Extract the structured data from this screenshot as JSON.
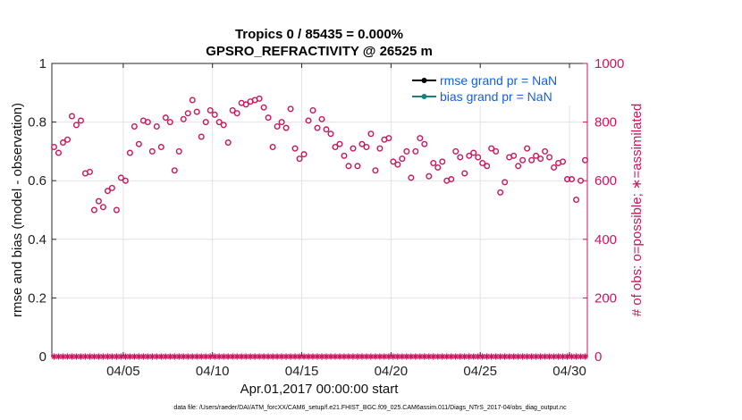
{
  "chart_data": {
    "type": "scatter",
    "title_line1": "Tropics 0 / 85435 = 0.000%",
    "title_line2": "GPSRO_REFRACTIVITY @ 26525 m",
    "xlabel": "Apr.01,2017 00:00:00 start",
    "ylabel_left": "rmse and bias (model - observation)",
    "ylabel_right": "# of obs: o=possible; ∗=assimilated",
    "x_tick_labels": [
      "04/05",
      "04/10",
      "04/15",
      "04/20",
      "04/25",
      "04/30"
    ],
    "x_tick_values": [
      5,
      10,
      15,
      20,
      25,
      30
    ],
    "xlim": [
      1,
      31
    ],
    "ylim_left": [
      0,
      1
    ],
    "ylim_right": [
      0,
      1000
    ],
    "y_left_ticks": [
      "0",
      "0.2",
      "0.4",
      "0.6",
      "0.8",
      "1"
    ],
    "y_right_ticks": [
      "0",
      "200",
      "400",
      "600",
      "800",
      "1000"
    ],
    "legend": [
      "rmse grand pr = NaN",
      "bias grand pr = NaN"
    ],
    "footnote": "data file: /Users/raeder/DAI/ATM_forcXX/CAM6_setup/f.e21.FHIST_BGC.f09_025.CAM6assim.011/Diags_NTrS_2017-04/obs_diag_output.nc",
    "colors": {
      "possible": "#c8175d",
      "rmse": "#000000",
      "bias": "#1a8080",
      "legend_text": "#1560d8"
    },
    "series": [
      {
        "name": "possible",
        "axis": "right",
        "x": [
          1.125,
          1.375,
          1.625,
          1.875,
          2.125,
          2.375,
          2.625,
          2.875,
          3.125,
          3.375,
          3.625,
          3.875,
          4.125,
          4.375,
          4.625,
          4.875,
          5.125,
          5.375,
          5.625,
          5.875,
          6.125,
          6.375,
          6.625,
          6.875,
          7.125,
          7.375,
          7.625,
          7.875,
          8.125,
          8.375,
          8.625,
          8.875,
          9.125,
          9.375,
          9.625,
          9.875,
          10.125,
          10.375,
          10.625,
          10.875,
          11.125,
          11.375,
          11.625,
          11.875,
          12.125,
          12.375,
          12.625,
          12.875,
          13.125,
          13.375,
          13.625,
          13.875,
          14.125,
          14.375,
          14.625,
          14.875,
          15.125,
          15.375,
          15.625,
          15.875,
          16.125,
          16.375,
          16.625,
          16.875,
          17.125,
          17.375,
          17.625,
          17.875,
          18.125,
          18.375,
          18.625,
          18.875,
          19.125,
          19.375,
          19.625,
          19.875,
          20.125,
          20.375,
          20.625,
          20.875,
          21.125,
          21.375,
          21.625,
          21.875,
          22.125,
          22.375,
          22.625,
          22.875,
          23.125,
          23.375,
          23.625,
          23.875,
          24.125,
          24.375,
          24.625,
          24.875,
          25.125,
          25.375,
          25.625,
          25.875,
          26.125,
          26.375,
          26.625,
          26.875,
          27.125,
          27.375,
          27.625,
          27.875,
          28.125,
          28.375,
          28.625,
          28.875,
          29.125,
          29.375,
          29.625,
          29.875,
          30.125,
          30.375,
          30.625,
          30.875
        ],
        "values": [
          715,
          695,
          730,
          740,
          820,
          790,
          805,
          625,
          630,
          500,
          530,
          510,
          565,
          575,
          500,
          610,
          600,
          695,
          785,
          725,
          805,
          800,
          700,
          785,
          715,
          815,
          800,
          635,
          700,
          810,
          830,
          875,
          835,
          750,
          800,
          840,
          825,
          800,
          790,
          730,
          840,
          830,
          865,
          860,
          870,
          875,
          880,
          850,
          815,
          715,
          785,
          800,
          780,
          845,
          710,
          675,
          690,
          805,
          840,
          780,
          810,
          775,
          760,
          715,
          725,
          685,
          650,
          710,
          650,
          725,
          715,
          760,
          635,
          710,
          740,
          745,
          665,
          655,
          675,
          700,
          610,
          700,
          745,
          725,
          615,
          660,
          645,
          665,
          600,
          605,
          700,
          680,
          625,
          685,
          695,
          680,
          660,
          650,
          710,
          700,
          560,
          595,
          680,
          685,
          650,
          670,
          710,
          670,
          685,
          675,
          700,
          680,
          645,
          660,
          665,
          605,
          605,
          535,
          600,
          670
        ]
      },
      {
        "name": "assimilated",
        "axis": "right",
        "value_all": 0
      }
    ]
  }
}
